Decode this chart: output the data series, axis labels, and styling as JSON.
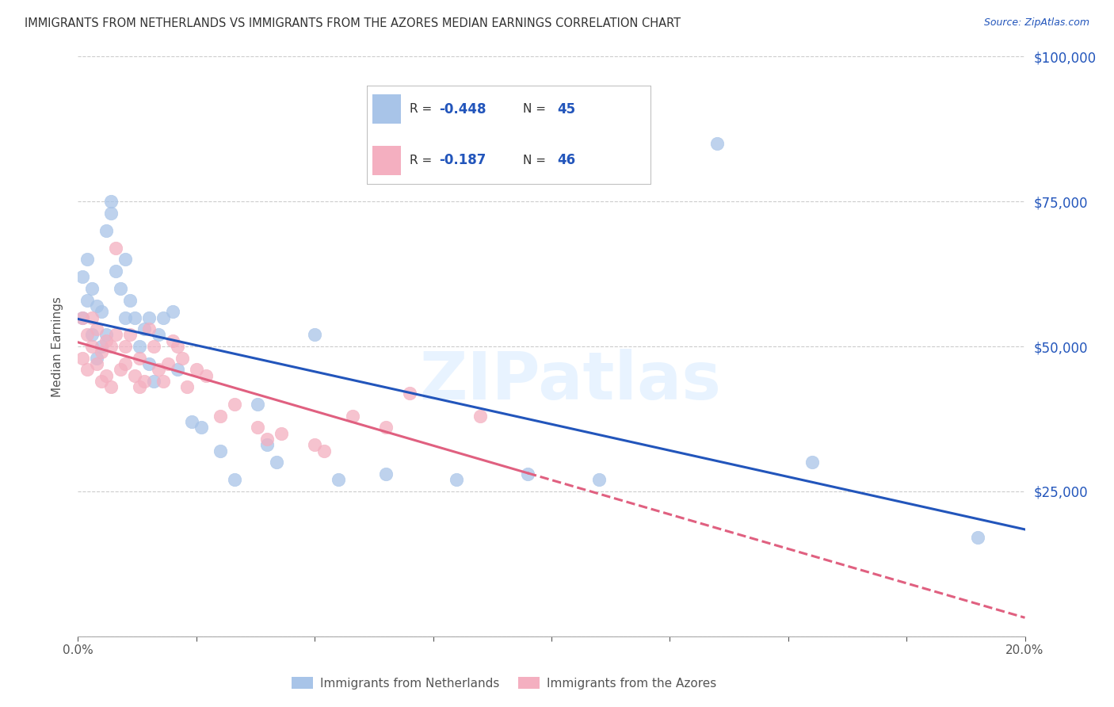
{
  "title": "IMMIGRANTS FROM NETHERLANDS VS IMMIGRANTS FROM THE AZORES MEDIAN EARNINGS CORRELATION CHART",
  "source": "Source: ZipAtlas.com",
  "ylabel": "Median Earnings",
  "xlim": [
    0.0,
    0.2
  ],
  "ylim": [
    0,
    100000
  ],
  "yticks": [
    0,
    25000,
    50000,
    75000,
    100000
  ],
  "r_netherlands": -0.448,
  "n_netherlands": 45,
  "r_azores": -0.187,
  "n_azores": 46,
  "color_netherlands": "#a8c4e8",
  "color_azores": "#f4afc0",
  "line_netherlands": "#2255bb",
  "line_azores": "#e06080",
  "background": "#ffffff",
  "grid_color": "#cccccc",
  "watermark": "ZIPatlas",
  "legend_label_netherlands": "Immigrants from Netherlands",
  "legend_label_azores": "Immigrants from the Azores",
  "netherlands_x": [
    0.001,
    0.001,
    0.002,
    0.002,
    0.003,
    0.003,
    0.004,
    0.004,
    0.005,
    0.005,
    0.006,
    0.006,
    0.007,
    0.007,
    0.008,
    0.009,
    0.01,
    0.01,
    0.011,
    0.012,
    0.013,
    0.014,
    0.015,
    0.015,
    0.016,
    0.017,
    0.018,
    0.02,
    0.021,
    0.024,
    0.026,
    0.03,
    0.033,
    0.038,
    0.04,
    0.042,
    0.05,
    0.055,
    0.065,
    0.08,
    0.095,
    0.11,
    0.135,
    0.155,
    0.19
  ],
  "netherlands_y": [
    62000,
    55000,
    65000,
    58000,
    60000,
    52000,
    57000,
    48000,
    56000,
    50000,
    70000,
    52000,
    75000,
    73000,
    63000,
    60000,
    65000,
    55000,
    58000,
    55000,
    50000,
    53000,
    47000,
    55000,
    44000,
    52000,
    55000,
    56000,
    46000,
    37000,
    36000,
    32000,
    27000,
    40000,
    33000,
    30000,
    52000,
    27000,
    28000,
    27000,
    28000,
    27000,
    85000,
    30000,
    17000
  ],
  "azores_x": [
    0.001,
    0.001,
    0.002,
    0.002,
    0.003,
    0.003,
    0.004,
    0.004,
    0.005,
    0.005,
    0.006,
    0.006,
    0.007,
    0.007,
    0.008,
    0.008,
    0.009,
    0.01,
    0.01,
    0.011,
    0.012,
    0.013,
    0.013,
    0.014,
    0.015,
    0.016,
    0.017,
    0.018,
    0.019,
    0.02,
    0.021,
    0.022,
    0.023,
    0.025,
    0.027,
    0.03,
    0.033,
    0.038,
    0.04,
    0.043,
    0.05,
    0.052,
    0.058,
    0.065,
    0.07,
    0.085
  ],
  "azores_y": [
    55000,
    48000,
    52000,
    46000,
    55000,
    50000,
    47000,
    53000,
    44000,
    49000,
    51000,
    45000,
    50000,
    43000,
    67000,
    52000,
    46000,
    50000,
    47000,
    52000,
    45000,
    48000,
    43000,
    44000,
    53000,
    50000,
    46000,
    44000,
    47000,
    51000,
    50000,
    48000,
    43000,
    46000,
    45000,
    38000,
    40000,
    36000,
    34000,
    35000,
    33000,
    32000,
    38000,
    36000,
    42000,
    38000
  ]
}
